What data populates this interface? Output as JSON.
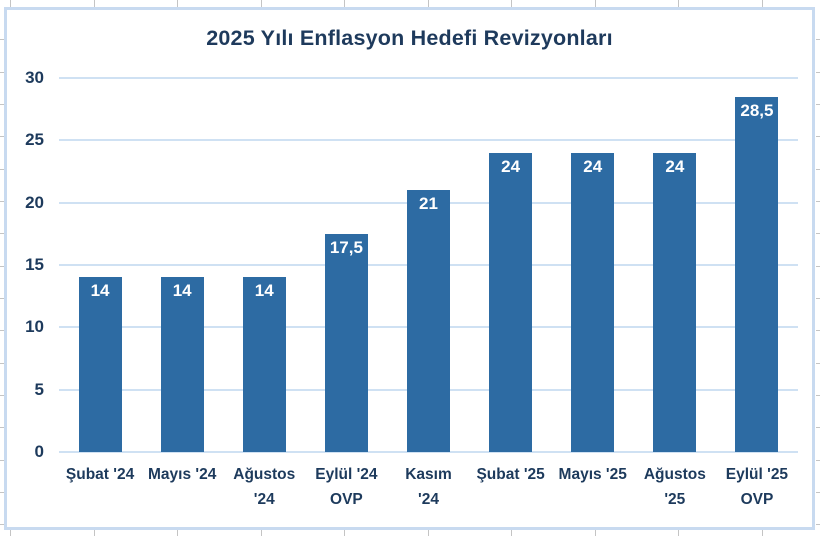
{
  "chart_data": {
    "type": "bar",
    "title": "2025 Yılı Enflasyon Hedefi Revizyonları",
    "categories": [
      "Şubat '24",
      "Mayıs '24",
      "Ağustos '24",
      "Eylül '24 OVP",
      "Kasım '24",
      "Şubat '25",
      "Mayıs '25",
      "Ağustos '25",
      "Eylül '25 OVP"
    ],
    "category_display": [
      "Şubat '24",
      "Mayıs '24",
      "Ağustos\n'24",
      "Eylül '24\nOVP",
      "Kasım\n'24",
      "Şubat '25",
      "Mayıs '25",
      "Ağustos\n'25",
      "Eylül '25\nOVP"
    ],
    "values": [
      14,
      14,
      14,
      17.5,
      21,
      24,
      24,
      24,
      28.5
    ],
    "value_labels": [
      "14",
      "14",
      "14",
      "17,5",
      "21",
      "24",
      "24",
      "24",
      "28,5"
    ],
    "xlabel": "",
    "ylabel": "",
    "ylim": [
      0,
      30
    ],
    "yticks": [
      0,
      5,
      10,
      15,
      20,
      25,
      30
    ],
    "grid": true,
    "legend_position": "none",
    "colors": {
      "bar": "#2d6ba3",
      "value_label": "#ffffff",
      "text": "#1d3a5c",
      "gridline": "#cfe1f3",
      "frame_border": "#c8daf0",
      "background": "#ffffff"
    }
  }
}
